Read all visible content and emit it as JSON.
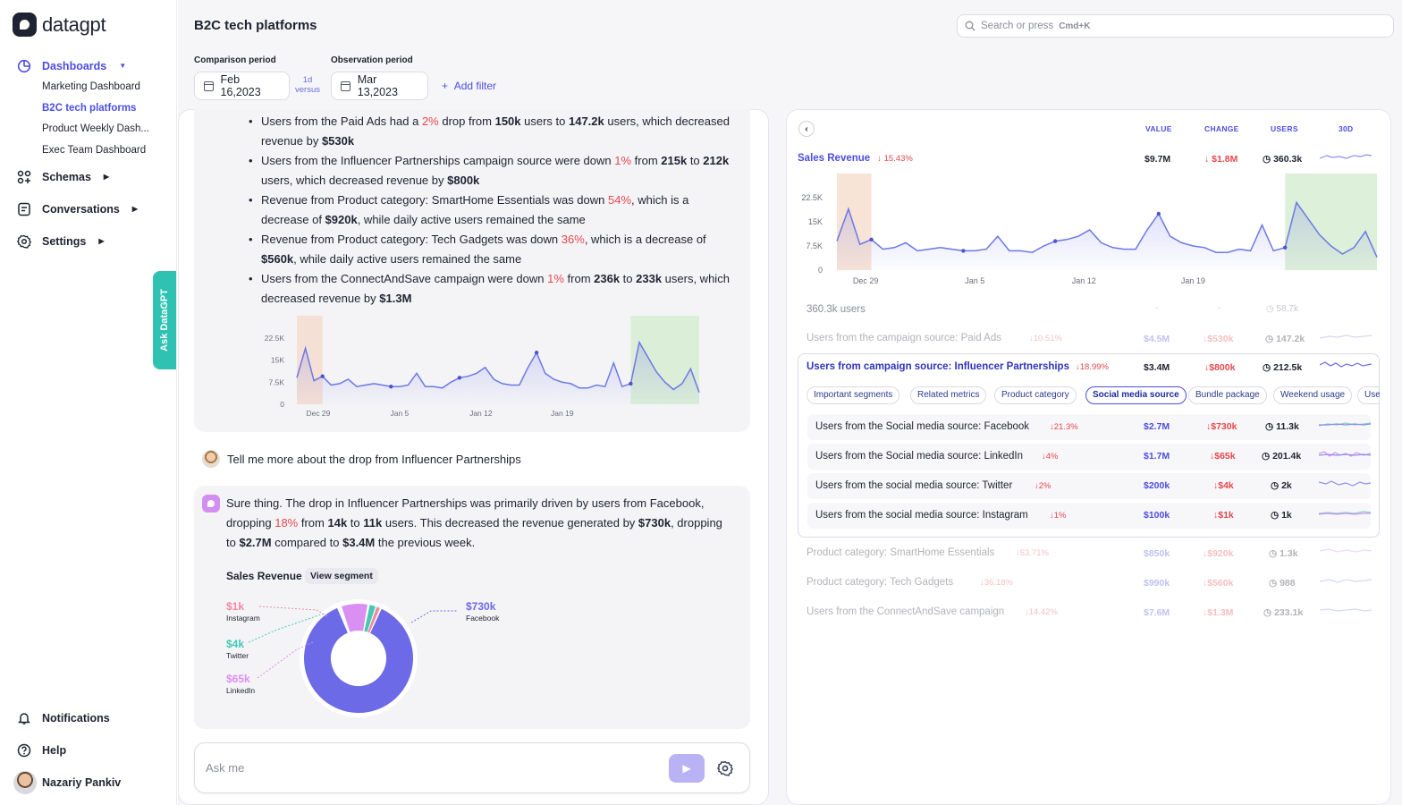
{
  "app": {
    "name": "datagpt"
  },
  "sidebar": {
    "dashboards": "Dashboards",
    "dash_items": [
      "Marketing Dashboard",
      "B2C tech platforms",
      "Product Weekly Dash...",
      "Exec Team Dashboard"
    ],
    "schemas": "Schemas",
    "conversations": "Conversations",
    "settings": "Settings",
    "notifications": "Notifications",
    "help": "Help",
    "user": "Nazariy Pankiv",
    "ask_tab": "Ask DataGPT"
  },
  "header": {
    "title": "B2C tech platforms",
    "search_placeholder": "Search or press",
    "search_shortcut": "Cmd+K",
    "comparison_label": "Comparison period",
    "comparison_date": "Feb 16,2023",
    "versus_top": "1d",
    "versus_bottom": "versus",
    "observation_label": "Observation period",
    "observation_date": "Mar 13,2023",
    "add_filter": "Add filter"
  },
  "chat": {
    "user_message": "Tell me more about the drop from Influencer Partnerships",
    "sales_revenue_label": "Sales Revenue",
    "view_segment": "View segment",
    "ask_placeholder": "Ask me",
    "donut": {
      "facebook": {
        "value": "$730k",
        "name": "Facebook"
      },
      "instagram": {
        "value": "$1k",
        "name": "Instagram"
      },
      "twitter": {
        "value": "$4k",
        "name": "Twitter"
      },
      "linkedin": {
        "value": "$65k",
        "name": "LinkedIn"
      }
    }
  },
  "right": {
    "col_value": "VALUE",
    "col_change": "CHANGE",
    "col_users": "USERS",
    "col_30d": "30D",
    "main_metric": {
      "name": "Sales Revenue",
      "pct": "15.43%",
      "value": "$9.7M",
      "change": "$1.8M",
      "users": "360.3k"
    },
    "users_row": {
      "name": "360.3k users",
      "value": "-",
      "change": "-",
      "users": "58,7k"
    },
    "rows_before": [
      {
        "name": "Users from the campaign source: Paid Ads",
        "pct": "10.51%",
        "value": "$4.5M",
        "change": "$530k",
        "users": "147.2k"
      }
    ],
    "expanded": {
      "name": "Users from campaign source: Influencer Partnerships",
      "pct": "18.99%",
      "value": "$3.4M",
      "change": "$800k",
      "users": "212.5k"
    },
    "chips": [
      "Important segments",
      "Related metrics",
      "Product category",
      "Social media source",
      "Bundle package",
      "Weekend usage",
      "Use"
    ],
    "subrows": [
      {
        "name": "Users from the Social media source: Facebook",
        "pct": "21.3%",
        "value": "$2.7M",
        "change": "$730k",
        "users": "11.3k"
      },
      {
        "name": "Users from the Social media source: LinkedIn",
        "pct": "4%",
        "value": "$1.7M",
        "change": "$65k",
        "users": "201.4k"
      },
      {
        "name": "Users from the social media source: Twitter",
        "pct": "2%",
        "value": "$200k",
        "change": "$4k",
        "users": "2k"
      },
      {
        "name": "Users from the social media source: Instagram",
        "pct": "1%",
        "value": "$100k",
        "change": "$1k",
        "users": "1k"
      }
    ],
    "rows_after": [
      {
        "name": "Product category: SmartHome Essentials",
        "pct": "53.71%",
        "value": "$850k",
        "change": "$920k",
        "users": "1.3k"
      },
      {
        "name": "Product category: Tech Gadgets",
        "pct": "36.18%",
        "value": "$990k",
        "change": "$560k",
        "users": "988"
      },
      {
        "name": "Users from the ConnectAndSave campaign",
        "pct": "14.42%",
        "value": "$7.6M",
        "change": "$1.3M",
        "users": "233.1k"
      }
    ]
  },
  "chart_data": [
    {
      "type": "area",
      "title": "Sales Revenue (chat)",
      "x_ticks": [
        "Dec 29",
        "Jan 5",
        "Jan 12",
        "Jan 19"
      ],
      "y_ticks": [
        "22.5K",
        "15K",
        "7.5K",
        "0"
      ],
      "ylim": [
        0,
        30000
      ],
      "values": [
        9000,
        19000,
        8000,
        9500,
        6500,
        7000,
        8500,
        6000,
        6500,
        7000,
        6500,
        6000,
        6000,
        6500,
        10500,
        6000,
        6000,
        5500,
        7500,
        9000,
        9500,
        10500,
        12500,
        8500,
        7000,
        6500,
        6500,
        12500,
        17500,
        10500,
        8500,
        7500,
        7000,
        5500,
        5500,
        6500,
        6000,
        14000,
        6000,
        7000,
        21000,
        16000,
        11000,
        7500,
        5000,
        7000,
        12000,
        4000
      ],
      "comparison_window": [
        0,
        3
      ],
      "observation_window": [
        39,
        47
      ],
      "markers": [
        3,
        11,
        19,
        28,
        39
      ]
    }
  ]
}
